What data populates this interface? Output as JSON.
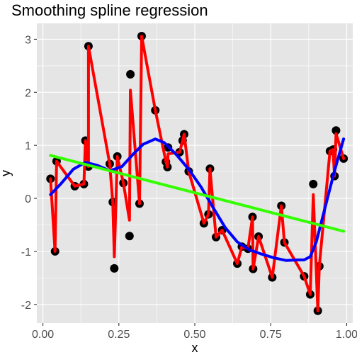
{
  "chart_data": {
    "type": "scatter",
    "title": "Smoothing spline regression",
    "xlabel": "x",
    "ylabel": "y",
    "xlim": [
      -0.02,
      1.02
    ],
    "ylim": [
      -2.35,
      3.3
    ],
    "grid": true,
    "x_ticks": [
      0.0,
      0.25,
      0.5,
      0.75,
      1.0
    ],
    "x_tick_labels": [
      "0.00",
      "0.25",
      "0.50",
      "0.75",
      "1.00"
    ],
    "y_ticks": [
      -2,
      -1,
      0,
      1,
      2,
      3
    ],
    "y_tick_labels": [
      "-2",
      "-1",
      "0",
      "1",
      "2",
      "3"
    ],
    "colors": {
      "panel": "#e5e5e5",
      "grid": "#ffffff",
      "points": "#000000",
      "overfit_spline": "#ff0000",
      "smooth_spline": "#0000ff",
      "linear_fit": "#33ff00"
    },
    "points": [
      {
        "x": 0.025,
        "y": 0.37
      },
      {
        "x": 0.04,
        "y": -1.0
      },
      {
        "x": 0.045,
        "y": 0.7
      },
      {
        "x": 0.105,
        "y": 0.23
      },
      {
        "x": 0.135,
        "y": 0.27
      },
      {
        "x": 0.14,
        "y": 1.09
      },
      {
        "x": 0.15,
        "y": 0.6
      },
      {
        "x": 0.15,
        "y": 2.87
      },
      {
        "x": 0.22,
        "y": 0.65
      },
      {
        "x": 0.23,
        "y": -0.07
      },
      {
        "x": 0.235,
        "y": -1.32
      },
      {
        "x": 0.245,
        "y": 0.79
      },
      {
        "x": 0.265,
        "y": 0.29
      },
      {
        "x": 0.285,
        "y": -0.71
      },
      {
        "x": 0.288,
        "y": 2.34
      },
      {
        "x": 0.318,
        "y": -0.1
      },
      {
        "x": 0.325,
        "y": 3.06
      },
      {
        "x": 0.37,
        "y": 1.66
      },
      {
        "x": 0.405,
        "y": 0.69
      },
      {
        "x": 0.41,
        "y": 0.59
      },
      {
        "x": 0.412,
        "y": 0.96
      },
      {
        "x": 0.45,
        "y": 0.87
      },
      {
        "x": 0.46,
        "y": 1.09
      },
      {
        "x": 0.465,
        "y": 1.21
      },
      {
        "x": 0.48,
        "y": 0.51
      },
      {
        "x": 0.53,
        "y": -0.47
      },
      {
        "x": 0.545,
        "y": -0.3
      },
      {
        "x": 0.55,
        "y": 0.56
      },
      {
        "x": 0.57,
        "y": -0.73
      },
      {
        "x": 0.59,
        "y": -0.6
      },
      {
        "x": 0.64,
        "y": -1.23
      },
      {
        "x": 0.655,
        "y": -0.91
      },
      {
        "x": 0.675,
        "y": -0.95
      },
      {
        "x": 0.69,
        "y": -0.35
      },
      {
        "x": 0.692,
        "y": -1.33
      },
      {
        "x": 0.71,
        "y": -0.72
      },
      {
        "x": 0.755,
        "y": -1.49
      },
      {
        "x": 0.785,
        "y": -0.14
      },
      {
        "x": 0.795,
        "y": -0.83
      },
      {
        "x": 0.86,
        "y": -1.47
      },
      {
        "x": 0.88,
        "y": -1.81
      },
      {
        "x": 0.89,
        "y": 0.27
      },
      {
        "x": 0.905,
        "y": -2.12
      },
      {
        "x": 0.91,
        "y": -1.28
      },
      {
        "x": 0.945,
        "y": 0.89
      },
      {
        "x": 0.955,
        "y": 0.92
      },
      {
        "x": 0.96,
        "y": 0.42
      },
      {
        "x": 0.965,
        "y": 1.28
      },
      {
        "x": 0.99,
        "y": 0.75
      }
    ],
    "series": [
      {
        "line": "overfit_spline",
        "x": [
          0.025,
          0.04,
          0.045,
          0.105,
          0.135,
          0.14,
          0.15,
          0.15,
          0.22,
          0.23,
          0.235,
          0.245,
          0.265,
          0.285,
          0.288,
          0.318,
          0.325,
          0.37,
          0.405,
          0.41,
          0.412,
          0.45,
          0.46,
          0.465,
          0.48,
          0.53,
          0.545,
          0.55,
          0.57,
          0.59,
          0.64,
          0.655,
          0.675,
          0.69,
          0.692,
          0.71,
          0.755,
          0.785,
          0.795,
          0.86,
          0.88,
          0.89,
          0.905,
          0.91,
          0.945,
          0.955,
          0.96,
          0.965,
          0.99
        ],
        "y": [
          0.37,
          -1.0,
          0.7,
          0.23,
          0.27,
          1.09,
          0.6,
          2.87,
          0.65,
          -0.07,
          -1.1,
          0.79,
          0.29,
          -0.41,
          2.04,
          -0.1,
          3.06,
          1.66,
          0.69,
          0.59,
          0.84,
          0.87,
          1.09,
          1.21,
          0.51,
          -0.47,
          -0.3,
          0.56,
          -0.73,
          -0.6,
          -1.23,
          -0.91,
          -0.95,
          -0.35,
          -1.33,
          -0.72,
          -1.49,
          -0.14,
          -0.83,
          -1.47,
          -1.81,
          0.07,
          -2.12,
          -1.28,
          0.89,
          0.92,
          0.42,
          1.22,
          0.75
        ]
      },
      {
        "line": "smooth_spline",
        "x": [
          0.025,
          0.06,
          0.1,
          0.14,
          0.18,
          0.22,
          0.26,
          0.3,
          0.33,
          0.37,
          0.4,
          0.44,
          0.48,
          0.52,
          0.56,
          0.6,
          0.64,
          0.68,
          0.72,
          0.76,
          0.8,
          0.84,
          0.86,
          0.88,
          0.9,
          0.93,
          0.96,
          0.99
        ],
        "y": [
          0.07,
          0.28,
          0.55,
          0.68,
          0.62,
          0.52,
          0.6,
          0.85,
          1.02,
          1.12,
          1.05,
          0.82,
          0.55,
          0.22,
          -0.17,
          -0.55,
          -0.82,
          -0.97,
          -1.05,
          -1.12,
          -1.17,
          -1.16,
          -1.16,
          -1.1,
          -0.82,
          -0.15,
          0.52,
          1.12
        ]
      },
      {
        "line": "linear_fit",
        "x": [
          0.025,
          0.99
        ],
        "y": [
          0.81,
          -0.62
        ]
      }
    ]
  }
}
